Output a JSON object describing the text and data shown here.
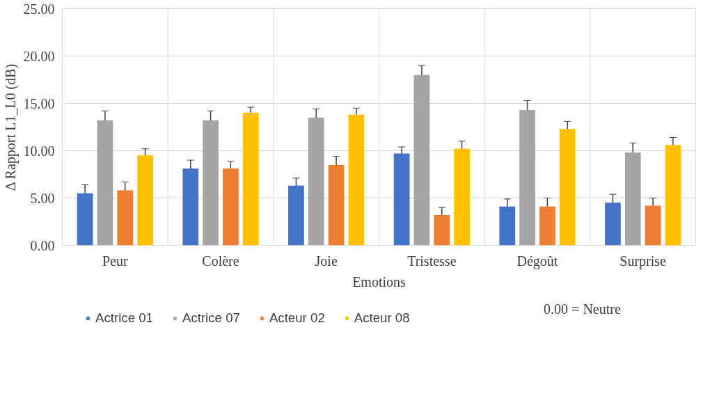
{
  "chart_data": {
    "type": "bar",
    "xlabel": "Emotions",
    "ylabel": "Δ Rapport L1_L0 (dB)",
    "categories": [
      "Peur",
      "Colère",
      "Joie",
      "Tristesse",
      "Dégoût",
      "Surprise"
    ],
    "series": [
      {
        "name": "Actrice 01",
        "color": "#4472c4",
        "values": [
          5.5,
          8.1,
          6.3,
          9.7,
          4.1,
          4.5
        ],
        "errors": [
          0.9,
          0.9,
          0.8,
          0.7,
          0.8,
          0.9
        ]
      },
      {
        "name": "Actrice 07",
        "color": "#a5a5a5",
        "values": [
          13.2,
          13.2,
          13.5,
          18.0,
          14.3,
          9.8
        ],
        "errors": [
          1.0,
          1.0,
          0.9,
          1.0,
          1.0,
          1.0
        ]
      },
      {
        "name": "Acteur 02",
        "color": "#ed7d31",
        "values": [
          5.8,
          8.1,
          8.5,
          3.2,
          4.1,
          4.2
        ],
        "errors": [
          0.9,
          0.8,
          0.9,
          0.8,
          0.9,
          0.8
        ]
      },
      {
        "name": "Acteur 08",
        "color": "#ffc000",
        "values": [
          9.5,
          14.0,
          13.8,
          10.2,
          12.3,
          10.6
        ],
        "errors": [
          0.7,
          0.6,
          0.7,
          0.8,
          0.8,
          0.8
        ]
      }
    ],
    "ylim": [
      0,
      25
    ],
    "yticks": [
      {
        "value": 0,
        "label": "0.00"
      },
      {
        "value": 5,
        "label": "5.00"
      },
      {
        "value": 10,
        "label": "10.00"
      },
      {
        "value": 15,
        "label": "15.00"
      },
      {
        "value": 20,
        "label": "20.00"
      },
      {
        "value": 25,
        "label": "25.00"
      }
    ],
    "grid": true,
    "legend": "bottom",
    "annotations": [
      "0.00 = Neutre"
    ]
  }
}
